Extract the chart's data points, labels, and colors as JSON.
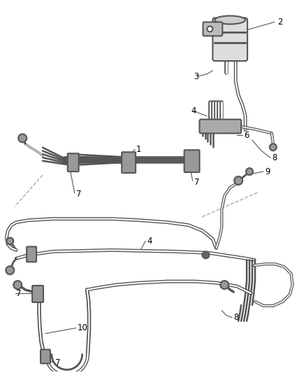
{
  "bg_color": "#ffffff",
  "line_color": "#555555",
  "label_color": "#000000",
  "lw": 1.5
}
